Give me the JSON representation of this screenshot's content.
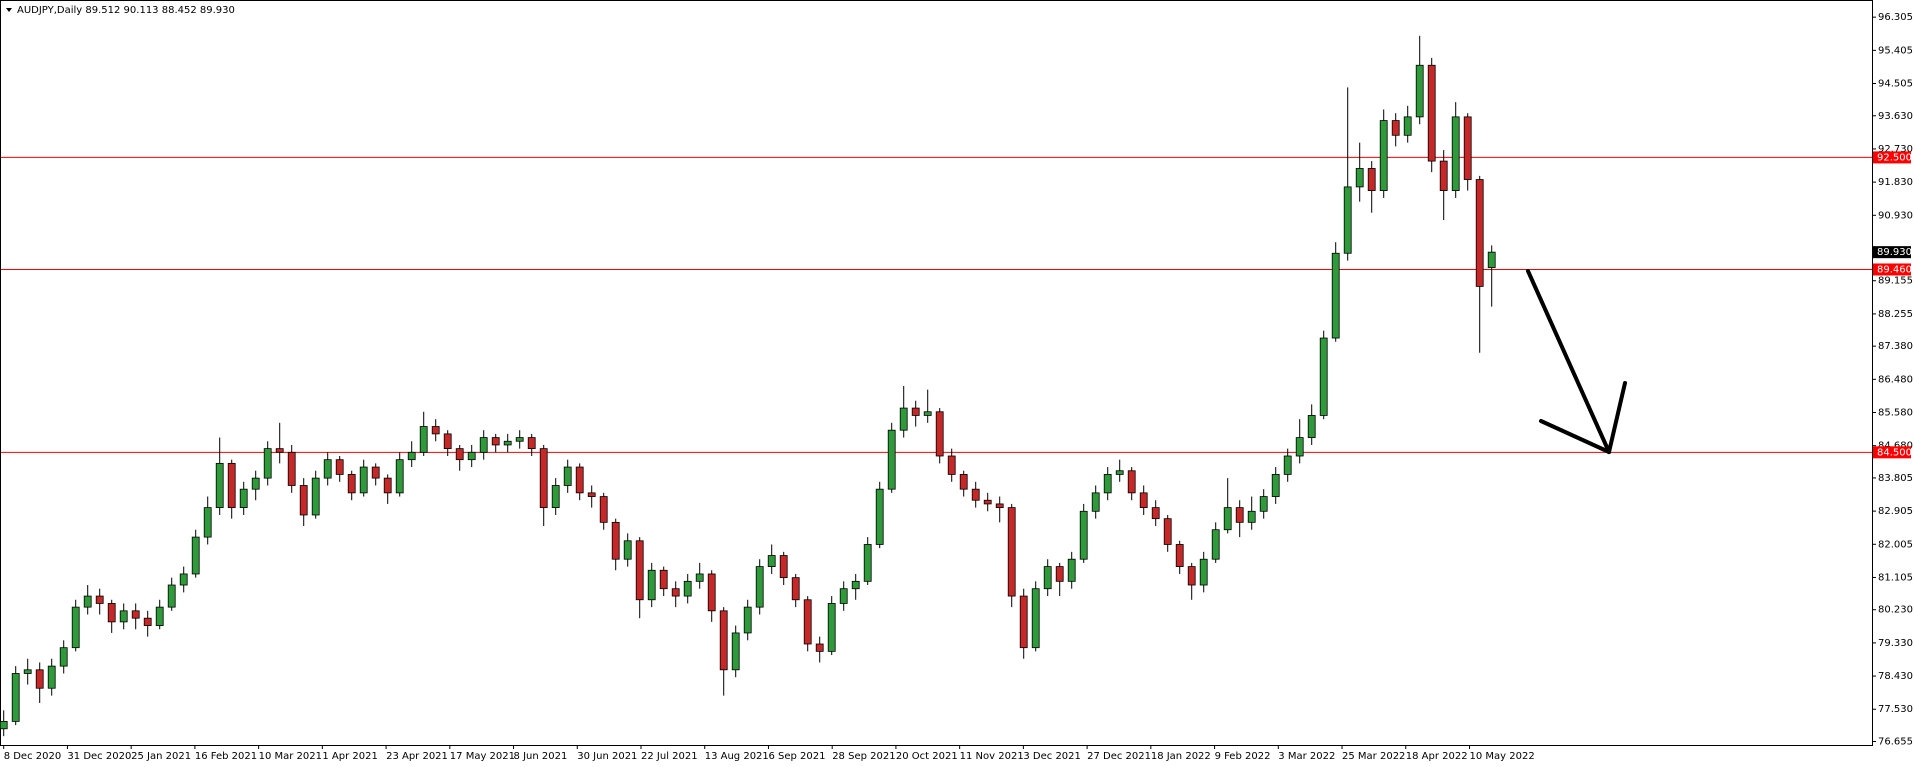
{
  "chart_data": {
    "type": "candlestick",
    "title": "AUDJPY,Daily  89.512 90.113 88.452 89.930",
    "x_labels": [
      "8 Dec 2020",
      "31 Dec 2020",
      "25 Jan 2021",
      "16 Feb 2021",
      "10 Mar 2021",
      "1 Apr 2021",
      "23 Apr 2021",
      "17 May 2021",
      "8 Jun 2021",
      "30 Jun 2021",
      "22 Jul 2021",
      "13 Aug 2021",
      "6 Sep 2021",
      "28 Sep 2021",
      "20 Oct 2021",
      "11 Nov 2021",
      "3 Dec 2021",
      "27 Dec 2021",
      "18 Jan 2022",
      "9 Feb 2022",
      "3 Mar 2022",
      "25 Mar 2022",
      "18 Apr 2022",
      "10 May 2022"
    ],
    "ylim": [
      76.56,
      96.67
    ],
    "yticks": [
      96.305,
      95.405,
      94.505,
      {
        "value": 93.63,
        "label": "93.630"
      },
      {
        "value": 92.73,
        "label": "92.730"
      },
      {
        "value": 91.83,
        "label": "91.830"
      },
      {
        "value": 90.93,
        "label": "90.930"
      },
      89.155,
      88.255,
      {
        "value": 87.38,
        "label": "87.380"
      },
      {
        "value": 86.48,
        "label": "86.480"
      },
      {
        "value": 85.58,
        "label": "85.580"
      },
      {
        "value": 84.68,
        "label": "84.680"
      },
      83.805,
      82.905,
      82.005,
      81.105,
      {
        "value": 80.23,
        "label": "80.230"
      },
      {
        "value": 79.33,
        "label": "79.330"
      },
      {
        "value": 78.43,
        "label": "78.430"
      },
      {
        "value": 77.53,
        "label": "77.530"
      },
      76.655
    ],
    "up_color": "#2e9a3a",
    "down_color": "#c62828",
    "wick_color": "#000000",
    "level_color": "#ff0000",
    "levels": [
      92.5,
      89.46,
      84.5
    ],
    "level_labels": [
      "92.500",
      "89.460",
      "84.500"
    ],
    "last_price": 89.93,
    "last_price_label": "89.930",
    "ohlc": [
      [
        77.0,
        77.5,
        76.8,
        77.2
      ],
      [
        77.2,
        78.7,
        77.1,
        78.5
      ],
      [
        78.5,
        78.9,
        78.2,
        78.6
      ],
      [
        78.6,
        78.8,
        77.7,
        78.1
      ],
      [
        78.1,
        78.9,
        77.9,
        78.7
      ],
      [
        78.7,
        79.4,
        78.5,
        79.2
      ],
      [
        79.2,
        80.5,
        79.1,
        80.3
      ],
      [
        80.3,
        80.9,
        80.1,
        80.6
      ],
      [
        80.6,
        80.8,
        80.1,
        80.4
      ],
      [
        80.4,
        80.5,
        79.6,
        79.9
      ],
      [
        79.9,
        80.4,
        79.7,
        80.2
      ],
      [
        80.2,
        80.4,
        79.7,
        80.0
      ],
      [
        80.0,
        80.2,
        79.5,
        79.8
      ],
      [
        79.8,
        80.5,
        79.7,
        80.3
      ],
      [
        80.3,
        81.1,
        80.2,
        80.9
      ],
      [
        80.9,
        81.4,
        80.7,
        81.2
      ],
      [
        81.2,
        82.4,
        81.1,
        82.2
      ],
      [
        82.2,
        83.3,
        82.0,
        83.0
      ],
      [
        83.0,
        84.9,
        82.8,
        84.2
      ],
      [
        84.2,
        84.3,
        82.7,
        83.0
      ],
      [
        83.0,
        83.7,
        82.8,
        83.5
      ],
      [
        83.5,
        84.0,
        83.2,
        83.8
      ],
      [
        83.8,
        84.8,
        83.6,
        84.6
      ],
      [
        84.6,
        85.3,
        84.2,
        84.5
      ],
      [
        84.5,
        84.7,
        83.4,
        83.6
      ],
      [
        83.6,
        83.8,
        82.5,
        82.8
      ],
      [
        82.8,
        84.0,
        82.7,
        83.8
      ],
      [
        83.8,
        84.5,
        83.6,
        84.3
      ],
      [
        84.3,
        84.4,
        83.7,
        83.9
      ],
      [
        83.9,
        84.0,
        83.2,
        83.4
      ],
      [
        83.4,
        84.3,
        83.3,
        84.1
      ],
      [
        84.1,
        84.2,
        83.6,
        83.8
      ],
      [
        83.8,
        83.9,
        83.1,
        83.4
      ],
      [
        83.4,
        84.5,
        83.3,
        84.3
      ],
      [
        84.3,
        84.8,
        84.1,
        84.5
      ],
      [
        84.5,
        85.6,
        84.4,
        85.2
      ],
      [
        85.2,
        85.4,
        84.8,
        85.0
      ],
      [
        85.0,
        85.1,
        84.4,
        84.6
      ],
      [
        84.6,
        84.7,
        84.0,
        84.3
      ],
      [
        84.3,
        84.7,
        84.1,
        84.5
      ],
      [
        84.5,
        85.1,
        84.3,
        84.9
      ],
      [
        84.9,
        85.0,
        84.5,
        84.7
      ],
      [
        84.7,
        85.0,
        84.5,
        84.8
      ],
      [
        84.8,
        85.1,
        84.6,
        84.9
      ],
      [
        84.9,
        85.0,
        84.4,
        84.6
      ],
      [
        84.6,
        84.7,
        82.5,
        83.0
      ],
      [
        83.0,
        83.8,
        82.8,
        83.6
      ],
      [
        83.6,
        84.3,
        83.4,
        84.1
      ],
      [
        84.1,
        84.2,
        83.2,
        83.4
      ],
      [
        83.4,
        83.6,
        83.0,
        83.3
      ],
      [
        83.3,
        83.4,
        82.4,
        82.6
      ],
      [
        82.6,
        82.7,
        81.3,
        81.6
      ],
      [
        81.6,
        82.3,
        81.4,
        82.1
      ],
      [
        82.1,
        82.2,
        80.0,
        80.5
      ],
      [
        80.5,
        81.5,
        80.3,
        81.3
      ],
      [
        81.3,
        81.4,
        80.6,
        80.8
      ],
      [
        80.8,
        81.0,
        80.3,
        80.6
      ],
      [
        80.6,
        81.2,
        80.4,
        81.0
      ],
      [
        81.0,
        81.5,
        80.8,
        81.2
      ],
      [
        81.2,
        81.3,
        79.9,
        80.2
      ],
      [
        80.2,
        80.3,
        77.9,
        78.6
      ],
      [
        78.6,
        79.8,
        78.4,
        79.6
      ],
      [
        79.6,
        80.5,
        79.4,
        80.3
      ],
      [
        80.3,
        81.6,
        80.1,
        81.4
      ],
      [
        81.4,
        82.0,
        81.2,
        81.7
      ],
      [
        81.7,
        81.8,
        80.9,
        81.1
      ],
      [
        81.1,
        81.2,
        80.3,
        80.5
      ],
      [
        80.5,
        80.6,
        79.1,
        79.3
      ],
      [
        79.3,
        79.5,
        78.8,
        79.1
      ],
      [
        79.1,
        80.6,
        79.0,
        80.4
      ],
      [
        80.4,
        81.0,
        80.2,
        80.8
      ],
      [
        80.8,
        81.2,
        80.5,
        81.0
      ],
      [
        81.0,
        82.2,
        80.9,
        82.0
      ],
      [
        82.0,
        83.7,
        81.9,
        83.5
      ],
      [
        83.5,
        85.3,
        83.4,
        85.1
      ],
      [
        85.1,
        86.3,
        84.9,
        85.7
      ],
      [
        85.7,
        85.9,
        85.2,
        85.5
      ],
      [
        85.5,
        86.2,
        85.3,
        85.6
      ],
      [
        85.6,
        85.7,
        84.2,
        84.4
      ],
      [
        84.4,
        84.6,
        83.7,
        83.9
      ],
      [
        83.9,
        84.0,
        83.3,
        83.5
      ],
      [
        83.5,
        83.7,
        83.0,
        83.2
      ],
      [
        83.2,
        83.4,
        82.9,
        83.1
      ],
      [
        83.1,
        83.3,
        82.6,
        83.0
      ],
      [
        83.0,
        83.1,
        80.3,
        80.6
      ],
      [
        80.6,
        80.8,
        78.9,
        79.2
      ],
      [
        79.2,
        81.0,
        79.1,
        80.8
      ],
      [
        80.8,
        81.6,
        80.6,
        81.4
      ],
      [
        81.4,
        81.5,
        80.6,
        81.0
      ],
      [
        81.0,
        81.8,
        80.8,
        81.6
      ],
      [
        81.6,
        83.1,
        81.5,
        82.9
      ],
      [
        82.9,
        83.6,
        82.7,
        83.4
      ],
      [
        83.4,
        84.1,
        83.2,
        83.9
      ],
      [
        83.9,
        84.3,
        83.7,
        84.0
      ],
      [
        84.0,
        84.1,
        83.2,
        83.4
      ],
      [
        83.4,
        83.6,
        82.8,
        83.0
      ],
      [
        83.0,
        83.2,
        82.5,
        82.7
      ],
      [
        82.7,
        82.8,
        81.8,
        82.0
      ],
      [
        82.0,
        82.1,
        81.2,
        81.4
      ],
      [
        81.4,
        81.5,
        80.5,
        80.9
      ],
      [
        80.9,
        81.8,
        80.7,
        81.6
      ],
      [
        81.6,
        82.6,
        81.5,
        82.4
      ],
      [
        82.4,
        83.8,
        82.3,
        83.0
      ],
      [
        83.0,
        83.2,
        82.2,
        82.6
      ],
      [
        82.6,
        83.3,
        82.4,
        82.9
      ],
      [
        82.9,
        83.5,
        82.7,
        83.3
      ],
      [
        83.3,
        84.1,
        83.1,
        83.9
      ],
      [
        83.9,
        84.6,
        83.7,
        84.4
      ],
      [
        84.4,
        85.4,
        84.2,
        84.9
      ],
      [
        84.9,
        85.8,
        84.7,
        85.5
      ],
      [
        85.5,
        87.8,
        85.4,
        87.6
      ],
      [
        87.6,
        90.2,
        87.5,
        89.9
      ],
      [
        89.9,
        94.4,
        89.7,
        91.7
      ],
      [
        91.7,
        92.9,
        91.3,
        92.2
      ],
      [
        92.2,
        92.4,
        91.0,
        91.6
      ],
      [
        91.6,
        93.8,
        91.4,
        93.5
      ],
      [
        93.5,
        93.7,
        92.8,
        93.1
      ],
      [
        93.1,
        93.9,
        92.9,
        93.6
      ],
      [
        93.6,
        95.8,
        93.4,
        95.0
      ],
      [
        95.0,
        95.2,
        92.1,
        92.4
      ],
      [
        92.4,
        92.7,
        90.8,
        91.6
      ],
      [
        91.6,
        94.0,
        91.4,
        93.6
      ],
      [
        93.6,
        93.7,
        91.6,
        91.9
      ],
      [
        91.9,
        92.0,
        87.2,
        89.0
      ],
      [
        89.512,
        90.113,
        88.452,
        89.93
      ]
    ]
  }
}
